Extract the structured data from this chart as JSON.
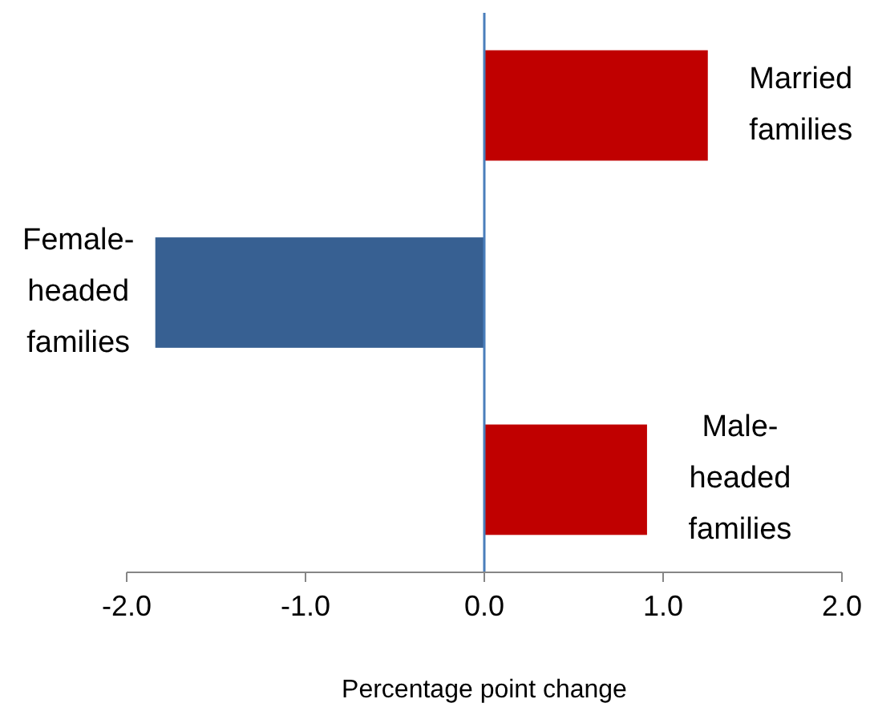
{
  "chart_data": {
    "type": "bar",
    "orientation": "horizontal",
    "xlabel": "Percentage point change",
    "categories": [
      "Married families",
      "Female-headed families",
      "Male-headed families"
    ],
    "values": [
      1.25,
      -1.84,
      0.91
    ],
    "colors": [
      "#c00000",
      "#376092",
      "#c00000"
    ],
    "xlim": [
      -2,
      2
    ],
    "xticks": [
      {
        "value": -2,
        "label": "-2.0"
      },
      {
        "value": -1,
        "label": "-1.0"
      },
      {
        "value": 0,
        "label": "0.0"
      },
      {
        "value": 1,
        "label": "1.0"
      },
      {
        "value": 2,
        "label": "2.0"
      }
    ],
    "ref_lines": [
      {
        "axis": "x",
        "value": 0,
        "color": "#4a7ebb"
      }
    ],
    "tick_labels": "x",
    "grid": false
  }
}
